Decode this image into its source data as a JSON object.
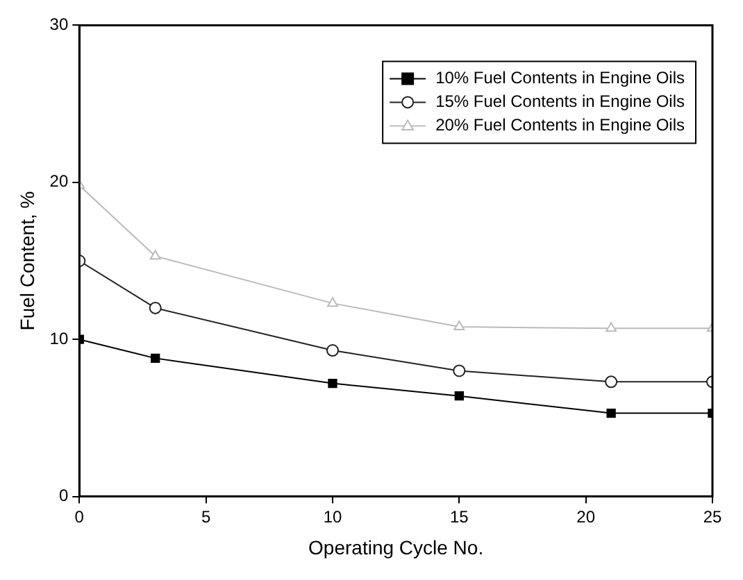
{
  "chart_data": {
    "type": "line",
    "xlabel": "Operating Cycle No.",
    "ylabel": "Fuel Content, %",
    "x": [
      0,
      3,
      10,
      15,
      21,
      25
    ],
    "series": [
      {
        "name": "10% Fuel Contents in Engine Oils",
        "color": "#000000",
        "marker": "square",
        "values": [
          10,
          8.8,
          7.2,
          6.4,
          5.3,
          5.3
        ]
      },
      {
        "name": "15% Fuel Contents in Engine Oils",
        "color": "#222222",
        "marker": "circle",
        "values": [
          15,
          12,
          9.3,
          8,
          7.3,
          7.3
        ]
      },
      {
        "name": "20% Fuel Contents in Engine Oils",
        "color": "#bbbbbb",
        "marker": "triangle",
        "values": [
          19.8,
          15.3,
          12.3,
          10.8,
          10.7,
          10.7
        ]
      }
    ],
    "xlim": [
      0,
      25
    ],
    "xticks": [
      0,
      5,
      10,
      15,
      20,
      25
    ],
    "ylim": [
      0,
      30
    ],
    "yticks": [
      0,
      10,
      20,
      30
    ],
    "grid": false,
    "legend": "top right",
    "line_style": "solid"
  }
}
